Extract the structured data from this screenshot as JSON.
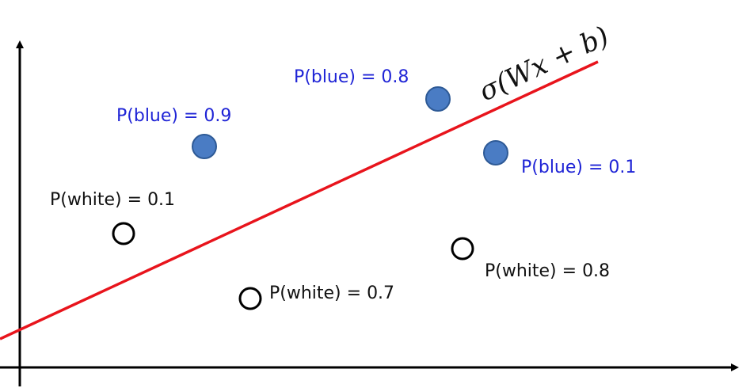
{
  "colors": {
    "axis": "#000000",
    "boundary": "#e8141c",
    "blue_point_fill": "#4a7cc4",
    "blue_point_stroke": "#2e5a96",
    "white_point_fill": "#ffffff",
    "white_point_stroke": "#000000",
    "blue_label": "#1f24d6",
    "white_label": "#111111"
  },
  "decision_boundary": {
    "label": "σ(Wx + b)"
  },
  "blue_points": [
    {
      "label": "P(blue) = 0.9"
    },
    {
      "label": "P(blue) = 0.8"
    },
    {
      "label": "P(blue) = 0.1"
    }
  ],
  "white_points": [
    {
      "label": "P(white) = 0.1"
    },
    {
      "label": "P(white) = 0.7"
    },
    {
      "label": "P(white) = 0.8"
    }
  ]
}
